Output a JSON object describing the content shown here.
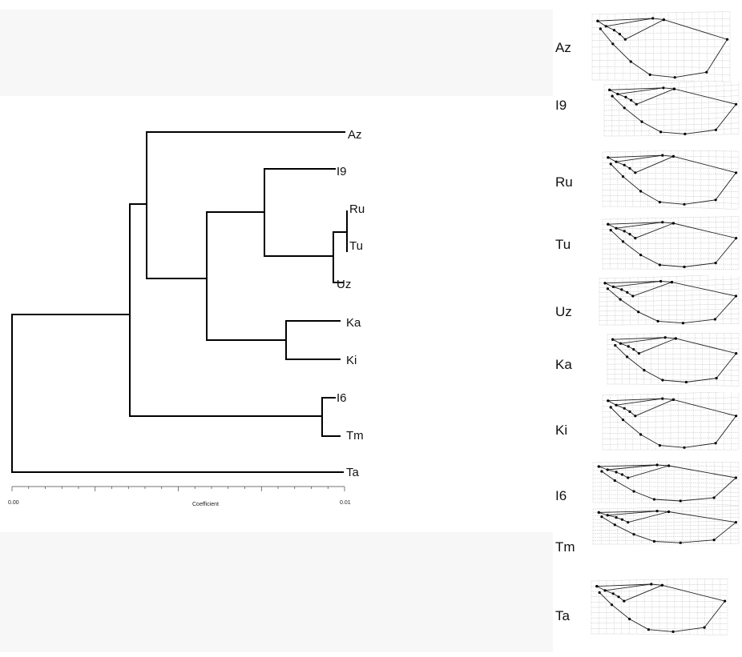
{
  "dendrogram": {
    "leaves": [
      "Az",
      "I9",
      "Ru",
      "Tu",
      "Uz",
      "Ka",
      "Ki",
      "I6",
      "Tm",
      "Ta"
    ],
    "axis": {
      "min_label": "0.00",
      "max_label": "0.01",
      "title": "Coefficient",
      "range": [
        0,
        0.01
      ]
    }
  },
  "wing_grids": [
    {
      "label": "Az"
    },
    {
      "label": "I9"
    },
    {
      "label": "Ru"
    },
    {
      "label": "Tu"
    },
    {
      "label": "Uz"
    },
    {
      "label": "Ka"
    },
    {
      "label": "Ki"
    },
    {
      "label": "I6"
    },
    {
      "label": "Tm"
    },
    {
      "label": "Ta"
    }
  ]
}
